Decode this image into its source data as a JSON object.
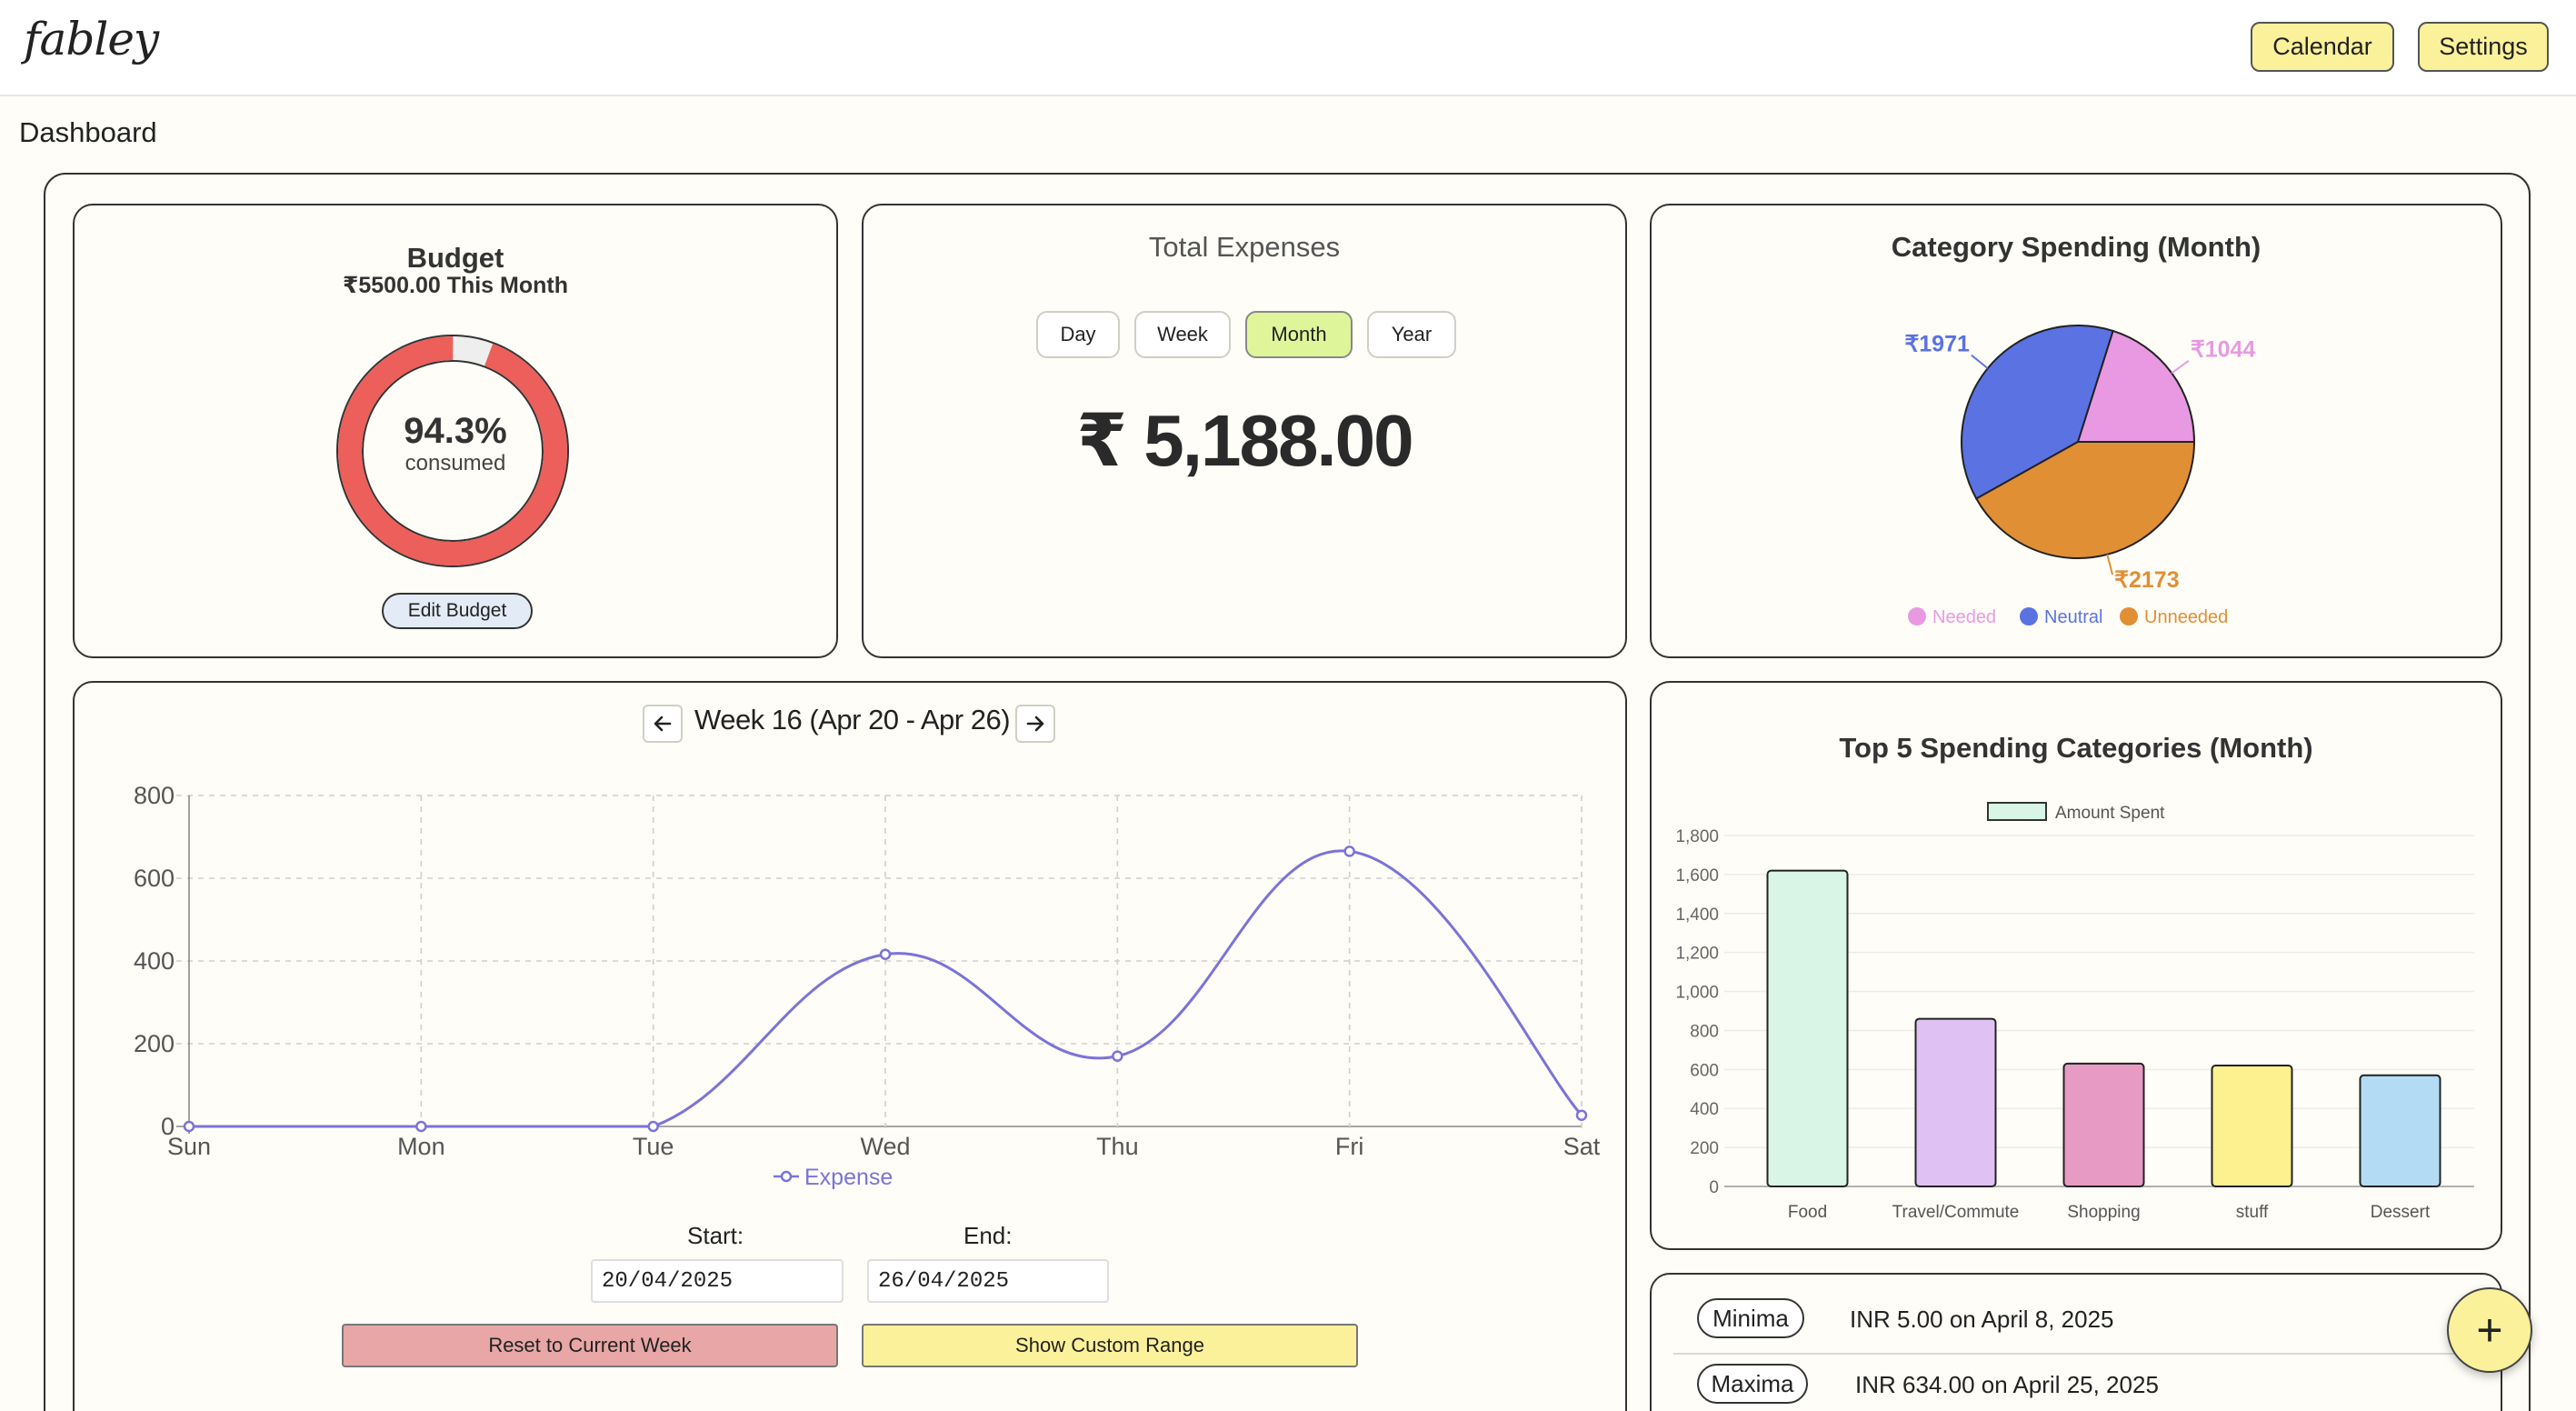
{
  "header": {
    "logo": "fabley",
    "calendar_label": "Calendar",
    "settings_label": "Settings"
  },
  "page_title": "Dashboard",
  "budget": {
    "title": "Budget",
    "subtitle": "₹5500.00 This Month",
    "percent_text": "94.3%",
    "percent_value": 94.3,
    "consumed_label": "consumed",
    "edit_label": "Edit Budget",
    "colors": {
      "consumed": "#ec5f5a",
      "remaining": "#eeeeee"
    }
  },
  "expenses": {
    "title": "Total Expenses",
    "tabs": [
      {
        "label": "Day"
      },
      {
        "label": "Week"
      },
      {
        "label": "Month"
      },
      {
        "label": "Year"
      }
    ],
    "active_tab": "Month",
    "total": "₹ 5,188.00"
  },
  "category_pie": {
    "title": "Category Spending (Month)",
    "chart_data": {
      "type": "pie",
      "labels": [
        "Needed",
        "Neutral",
        "Unneeded"
      ],
      "values": [
        1044,
        1971,
        2173
      ],
      "value_labels": [
        "₹1044",
        "₹1971",
        "₹2173"
      ],
      "colors": [
        "#e899e2",
        "#5b72e3",
        "#e08f35"
      ],
      "legend_position": "bottom"
    }
  },
  "weekly": {
    "title": "Week 16 (Apr 20 - Apr 26)",
    "prev_icon": "arrow-left-icon",
    "next_icon": "arrow-right-icon",
    "chart_data": {
      "type": "line",
      "categories": [
        "Sun",
        "Mon",
        "Tue",
        "Wed",
        "Thu",
        "Fri",
        "Sat"
      ],
      "series": [
        {
          "name": "Expense",
          "values": [
            0,
            0,
            0,
            416,
            170,
            665,
            27
          ],
          "color": "#7b73d8"
        }
      ],
      "ylim": [
        0,
        800
      ],
      "yticks": [
        "0",
        "200",
        "400",
        "600",
        "800"
      ],
      "grid": true,
      "legend_position": "bottom"
    },
    "start_label": "Start:",
    "end_label": "End:",
    "start_value": "20/04/2025",
    "end_value": "26/04/2025",
    "reset_label": "Reset to Current Week",
    "custom_label": "Show Custom Range"
  },
  "top5": {
    "title": "Top 5 Spending Categories (Month)",
    "chart_data": {
      "type": "bar",
      "categories": [
        "Food",
        "Travel/Commute",
        "Shopping",
        "stuff",
        "Dessert"
      ],
      "series": [
        {
          "name": "Amount Spent",
          "values": [
            1620,
            860,
            630,
            620,
            570
          ]
        }
      ],
      "colors": [
        "#d8f5e6",
        "#dfc2f3",
        "#e79bc4",
        "#fdf08f",
        "#b3dcf4"
      ],
      "ylim": [
        0,
        1800
      ],
      "yticks": [
        "0",
        "200",
        "400",
        "600",
        "800",
        "1,000",
        "1,200",
        "1,400",
        "1,600",
        "1,800"
      ],
      "legend_position": "top"
    }
  },
  "stats": {
    "minima_label": "Minima",
    "minima_value": "INR 5.00 on April 8, 2025",
    "maxima_label": "Maxima",
    "maxima_value": "INR 634.00 on April 25, 2025"
  },
  "fab_label": "+"
}
